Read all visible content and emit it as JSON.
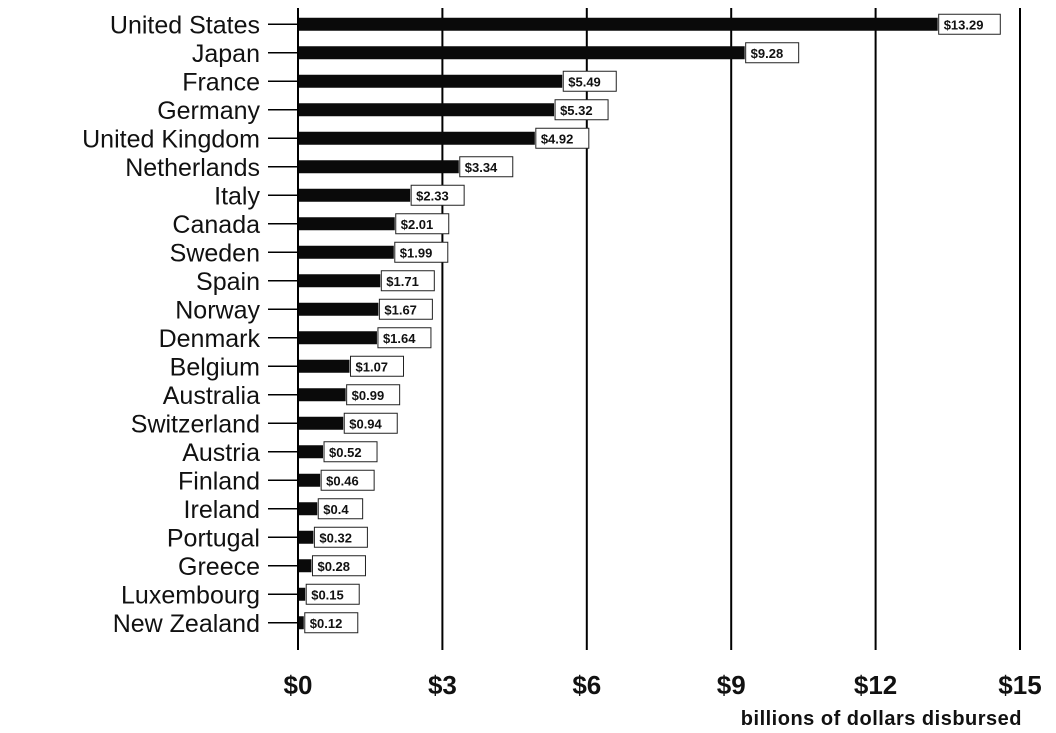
{
  "chart_data": {
    "type": "bar",
    "orientation": "horizontal",
    "categories": [
      "United States",
      "Japan",
      "France",
      "Germany",
      "United Kingdom",
      "Netherlands",
      "Italy",
      "Canada",
      "Sweden",
      "Spain",
      "Norway",
      "Denmark",
      "Belgium",
      "Australia",
      "Switzerland",
      "Austria",
      "Finland",
      "Ireland",
      "Portugal",
      "Greece",
      "Luxembourg",
      "New Zealand"
    ],
    "values": [
      13.29,
      9.28,
      5.49,
      5.32,
      4.92,
      3.34,
      2.33,
      2.01,
      1.99,
      1.71,
      1.67,
      1.64,
      1.07,
      0.99,
      0.94,
      0.52,
      0.46,
      0.4,
      0.32,
      0.28,
      0.15,
      0.12
    ],
    "data_labels": [
      "$13.29",
      "$9.28",
      "$5.49",
      "$5.32",
      "$4.92",
      "$3.34",
      "$2.33",
      "$2.01",
      "$1.99",
      "$1.71",
      "$1.67",
      "$1.64",
      "$1.07",
      "$0.99",
      "$0.94",
      "$0.52",
      "$0.46",
      "$0.4",
      "$0.32",
      "$0.28",
      "$0.15",
      "$0.12"
    ],
    "xlabel": "billions of dollars disbursed",
    "ylabel": "",
    "title": "",
    "xlim": [
      0,
      15
    ],
    "xticks": [
      0,
      3,
      6,
      9,
      12,
      15
    ],
    "xtick_labels": [
      "$0",
      "$3",
      "$6",
      "$9",
      "$12",
      "$15"
    ],
    "grid": true,
    "bar_color": "#0a0a0a"
  }
}
